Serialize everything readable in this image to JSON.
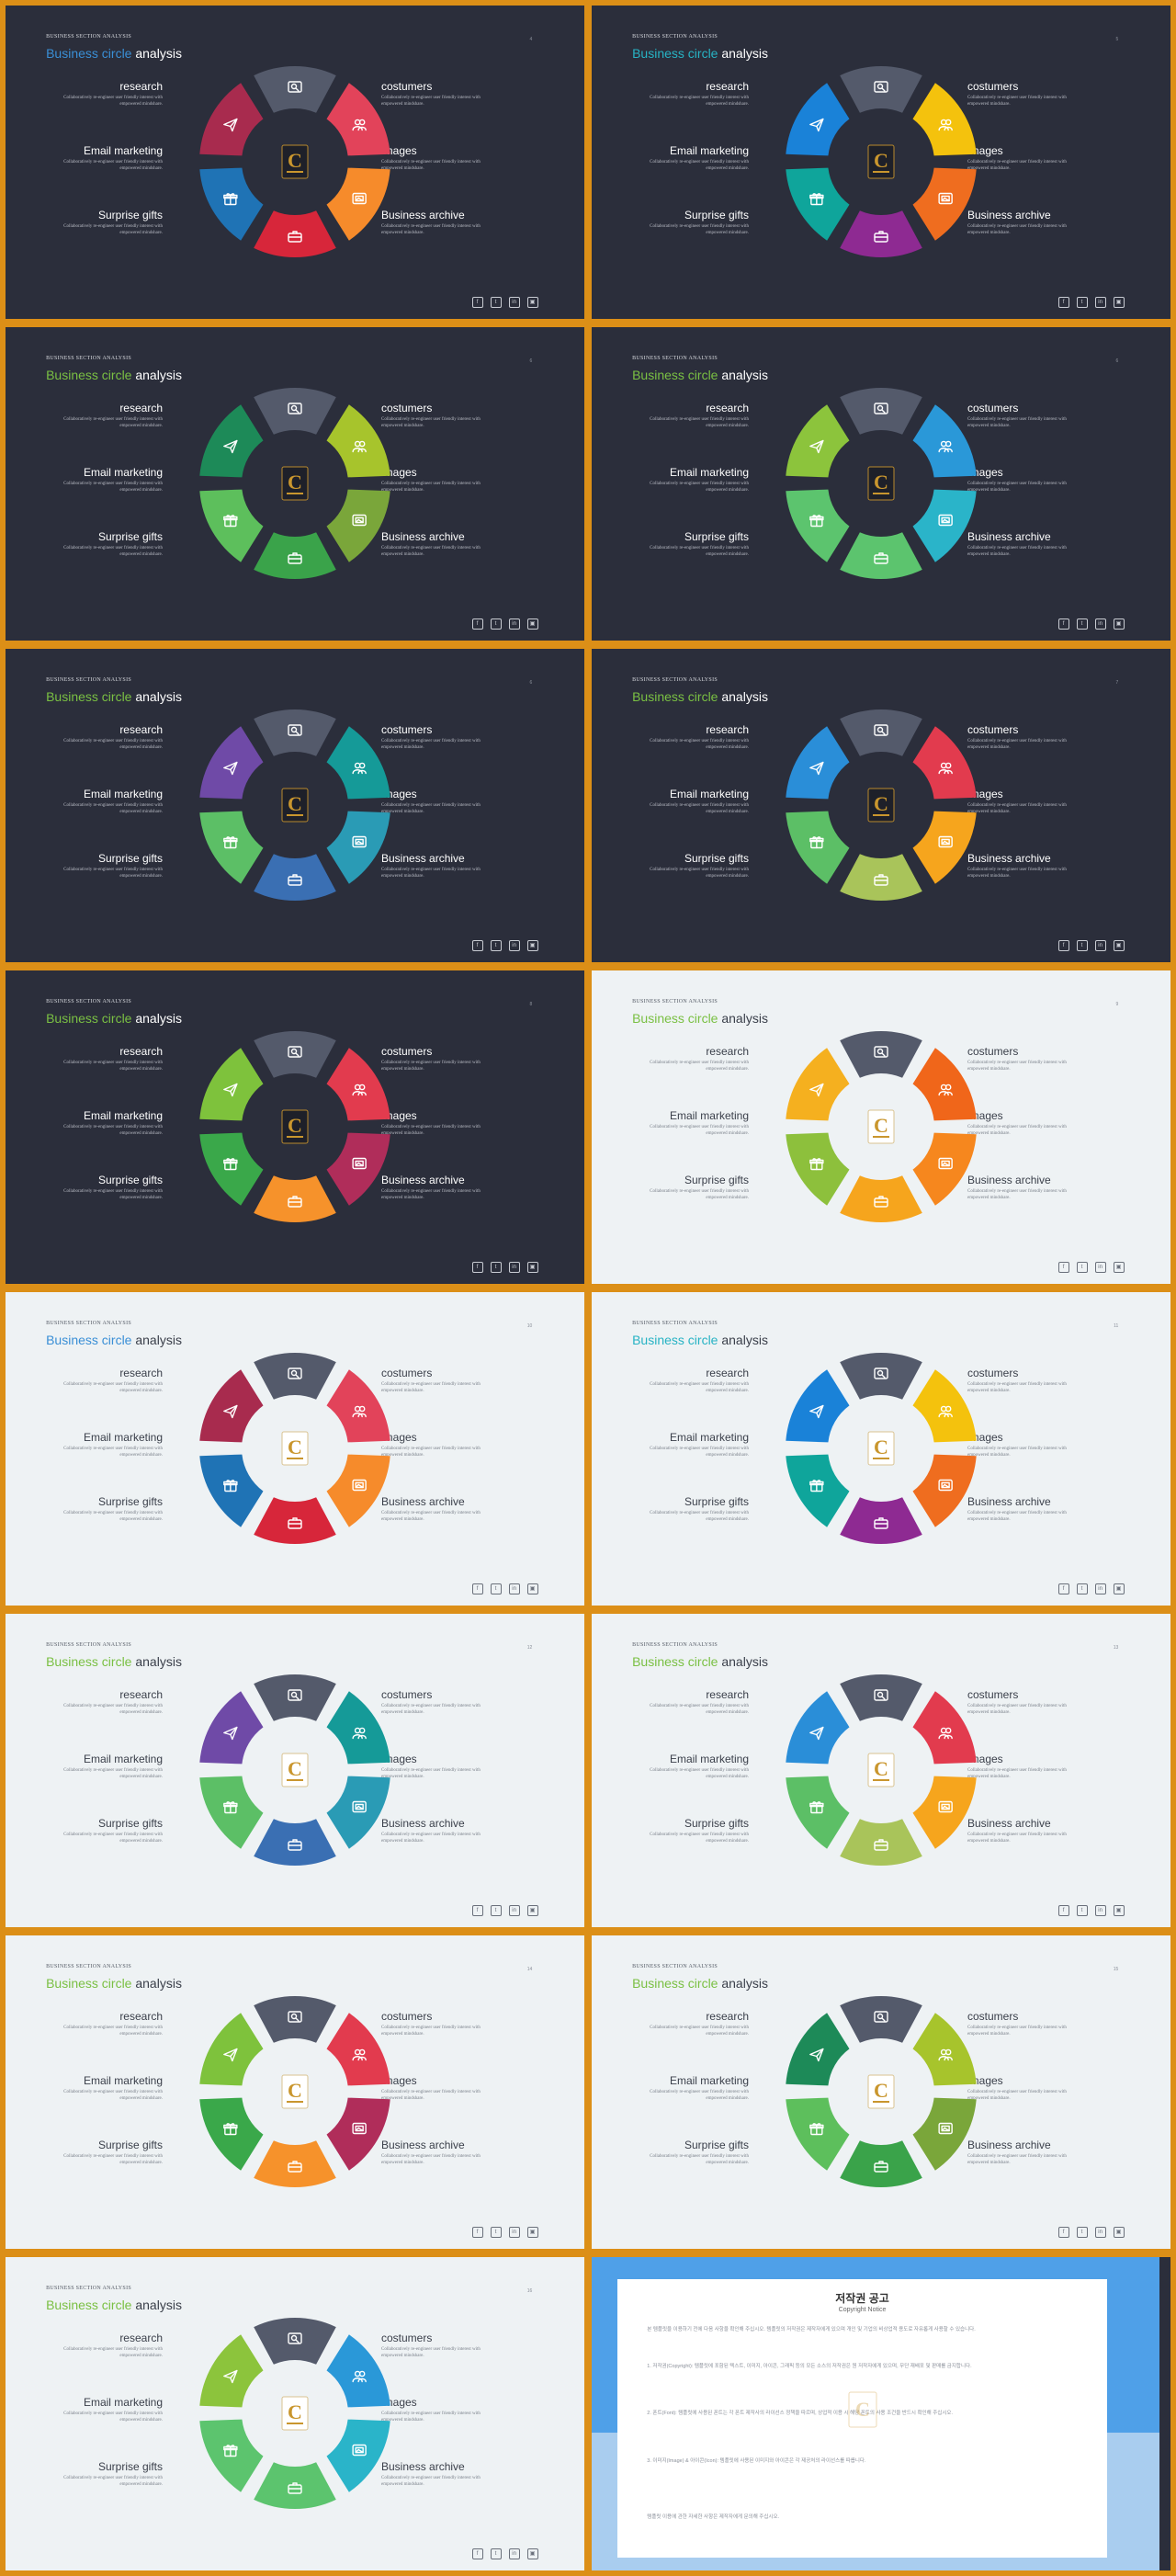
{
  "labels": {
    "kicker": "BUSINESS SECTION ANALYSIS",
    "title_part1": "Business ",
    "title_part2": "circle",
    "title_part3": " analysis",
    "research": "research",
    "email": "Email marketing",
    "gifts": "Surprise gifts",
    "costumers": "costumers",
    "images": "images",
    "archive": "Business archive",
    "desc": "Collaboratively re-engineer user friendly interest with empowered mindshare."
  },
  "social": [
    "f",
    "t",
    "in",
    "▣"
  ],
  "slides": [
    {
      "theme": "dark",
      "page": "4",
      "accent": "#3a8fd6",
      "colors": [
        "#545a6b",
        "#e2435a",
        "#f68b2b",
        "#d7263a",
        "#1f73b5",
        "#a82b4e"
      ]
    },
    {
      "theme": "dark",
      "page": "5",
      "accent": "#27b3c4",
      "colors": [
        "#545a6b",
        "#f4c20d",
        "#ef6d1f",
        "#8e2a92",
        "#0fa59b",
        "#1a82d8"
      ]
    },
    {
      "theme": "dark",
      "page": "6",
      "accent": "#7ac043",
      "colors": [
        "#545a6b",
        "#a7c42c",
        "#7aa63a",
        "#3aa34a",
        "#5dbf5c",
        "#1d8a58"
      ]
    },
    {
      "theme": "dark",
      "page": "6",
      "accent": "#7ac043",
      "colors": [
        "#545a6b",
        "#2a98d8",
        "#2ab4c9",
        "#5cc46e",
        "#5cc46e",
        "#8cc43c"
      ]
    },
    {
      "theme": "dark",
      "page": "6",
      "accent": "#7ac043",
      "colors": [
        "#545a6b",
        "#159a98",
        "#2a9bb5",
        "#3a6fb3",
        "#5cbf66",
        "#6f4aa7"
      ]
    },
    {
      "theme": "dark",
      "page": "7",
      "accent": "#7ac043",
      "colors": [
        "#545a6b",
        "#e23b4e",
        "#f6a51d",
        "#a9c45a",
        "#5cbf66",
        "#2a8ed8"
      ]
    },
    {
      "theme": "dark",
      "page": "8",
      "accent": "#7ac043",
      "colors": [
        "#545a6b",
        "#e23b4e",
        "#b02d5a",
        "#f6922b",
        "#3aa84a",
        "#7ec23c"
      ]
    },
    {
      "theme": "light",
      "page": "9",
      "accent": "#7ac043",
      "colors": [
        "#545a6b",
        "#f0661a",
        "#f6871e",
        "#f6a51d",
        "#8dc03c",
        "#f5b01f"
      ]
    },
    {
      "theme": "light",
      "page": "10",
      "accent": "#3a8fd6",
      "colors": [
        "#545a6b",
        "#e2435a",
        "#f68b2b",
        "#d7263a",
        "#1f73b5",
        "#a82b4e"
      ]
    },
    {
      "theme": "light",
      "page": "11",
      "accent": "#27b3c4",
      "colors": [
        "#545a6b",
        "#f4c20d",
        "#ef6d1f",
        "#8e2a92",
        "#0fa59b",
        "#1a82d8"
      ]
    },
    {
      "theme": "light",
      "page": "12",
      "accent": "#7ac043",
      "colors": [
        "#545a6b",
        "#159a98",
        "#2a9bb5",
        "#3a6fb3",
        "#5cbf66",
        "#6f4aa7"
      ]
    },
    {
      "theme": "light",
      "page": "13",
      "accent": "#7ac043",
      "colors": [
        "#545a6b",
        "#e23b4e",
        "#f6a51d",
        "#a9c45a",
        "#5cbf66",
        "#2a8ed8"
      ]
    },
    {
      "theme": "light",
      "page": "14",
      "accent": "#7ac043",
      "colors": [
        "#545a6b",
        "#e23b4e",
        "#b02d5a",
        "#f6922b",
        "#3aa84a",
        "#7ec23c"
      ]
    },
    {
      "theme": "light",
      "page": "15",
      "accent": "#7ac043",
      "colors": [
        "#545a6b",
        "#a7c42c",
        "#7aa63a",
        "#3aa34a",
        "#5dbf5c",
        "#1d8a58"
      ]
    },
    {
      "theme": "light",
      "page": "16",
      "accent": "#7ac043",
      "colors": [
        "#545a6b",
        "#2a98d8",
        "#2ab4c9",
        "#5cc46e",
        "#5cc46e",
        "#8cc43c"
      ]
    }
  ],
  "notice": {
    "title": "저작권 공고",
    "subtitle": "Copyright Notice",
    "p1": "본 템플릿을 이용하기 전에 다음 사항을 확인해 주십시오. 템플릿의 저작권은 제작자에게 있으며 개인 및 기업의 비상업적 용도로 자유롭게 사용할 수 있습니다.",
    "p2": "1. 저작권(Copyright): 템플릿에 포함된 텍스트, 이미지, 아이콘, 그래픽 등의 모든 소스의 저작권은 원 저작자에게 있으며, 무단 재배포 및 판매를 금지합니다.",
    "p3": "2. 폰트(Font): 템플릿에 사용된 폰트는 각 폰트 제작사의 라이선스 정책을 따르며, 상업적 이용 시 해당 폰트의 사용 조건을 반드시 확인해 주십시오.",
    "p4": "3. 이미지(Image) & 아이콘(Icon): 템플릿에 사용된 이미지와 아이콘은 각 제공처의 라이선스를 따릅니다.",
    "p5": "템플릿 이용에 관한 자세한 사항은 제작자에게 문의해 주십시오."
  }
}
